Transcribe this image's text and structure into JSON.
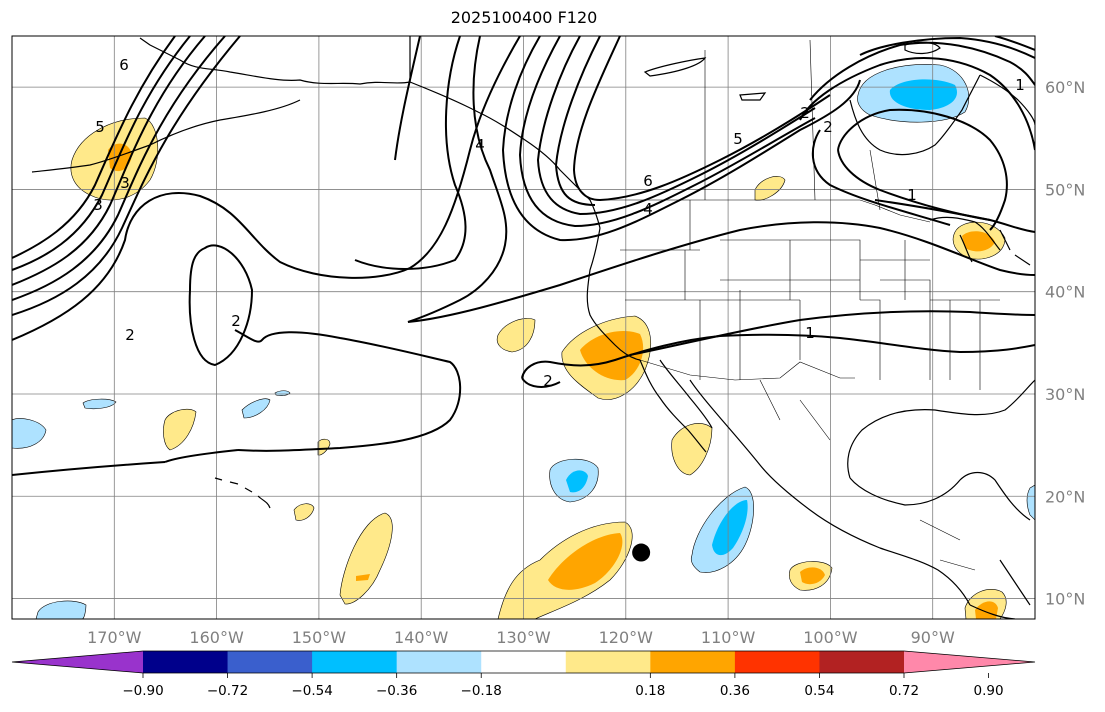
{
  "title": "2025100400 F120",
  "map": {
    "lon_range": [
      -180,
      -80
    ],
    "lat_range": [
      8,
      65
    ],
    "lon_ticks": [
      {
        "value": -170,
        "label": "170°W"
      },
      {
        "value": -160,
        "label": "160°W"
      },
      {
        "value": -150,
        "label": "150°W"
      },
      {
        "value": -140,
        "label": "140°W"
      },
      {
        "value": -130,
        "label": "130°W"
      },
      {
        "value": -120,
        "label": "120°W"
      },
      {
        "value": -110,
        "label": "110°W"
      },
      {
        "value": -100,
        "label": "100°W"
      },
      {
        "value": -90,
        "label": "90°W"
      }
    ],
    "lat_ticks": [
      {
        "value": 10,
        "label": "10°N"
      },
      {
        "value": 20,
        "label": "20°N"
      },
      {
        "value": 30,
        "label": "30°N"
      },
      {
        "value": 40,
        "label": "40°N"
      },
      {
        "value": 50,
        "label": "50°N"
      },
      {
        "value": 60,
        "label": "60°N"
      }
    ],
    "grid": true,
    "marker": {
      "lon": -118.5,
      "lat": 14.5,
      "color": "#000000"
    }
  },
  "colorbar": {
    "bounds": [
      -0.9,
      -0.72,
      -0.54,
      -0.36,
      -0.18,
      0.18,
      0.36,
      0.54,
      0.72,
      0.9
    ],
    "colors": [
      "#9933cc",
      "#00008b",
      "#3a5fcd",
      "#00bfff",
      "#aee2ff",
      "#ffffff",
      "#ffe98a",
      "#ffa500",
      "#ff3300",
      "#b22222",
      "#ff88aa"
    ],
    "tick_labels": [
      "−0.90",
      "−0.72",
      "−0.54",
      "−0.36",
      "−0.18",
      "0.18",
      "0.36",
      "0.54",
      "0.72",
      "0.90"
    ]
  },
  "contour_labels": [
    "6",
    "5",
    "3",
    "2",
    "4",
    "6",
    "4",
    "2",
    "2",
    "1",
    "1",
    "5",
    "2",
    "1",
    "2",
    "3"
  ],
  "shading": {
    "positive_light": "#ffe98a",
    "positive_dark": "#ffa500",
    "negative_light": "#aee2ff",
    "negative_dark": "#00bfff"
  }
}
